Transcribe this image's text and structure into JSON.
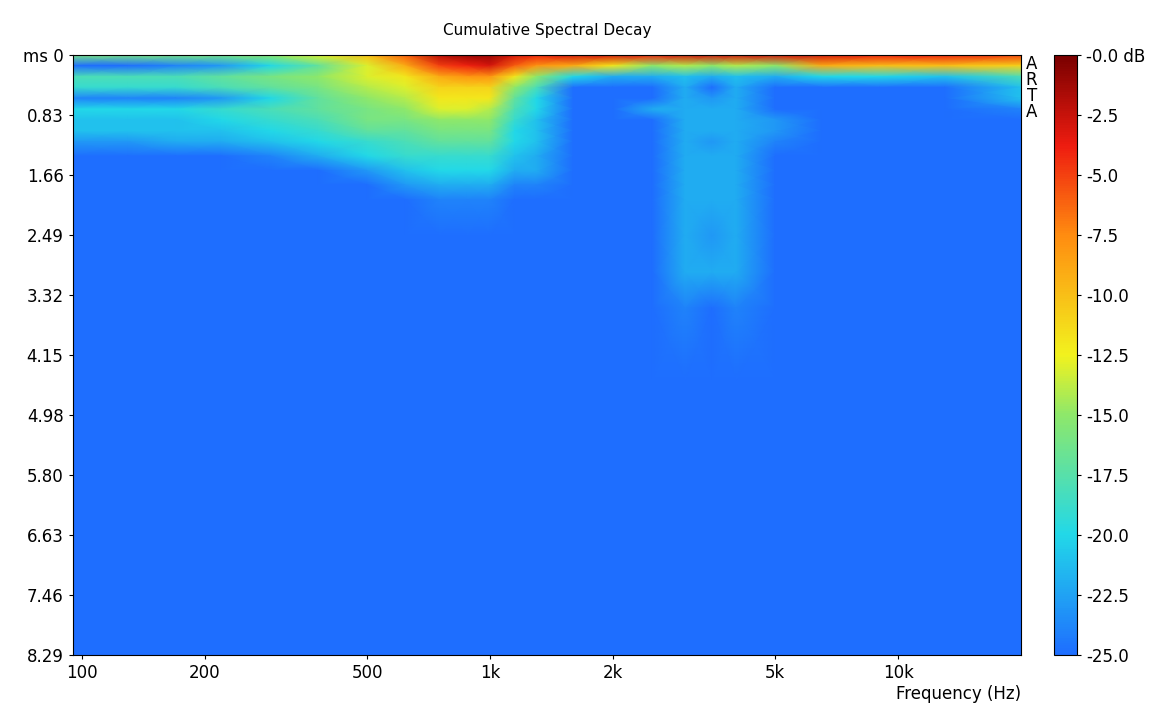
{
  "chart_data": {
    "type": "heatmap",
    "title": "Cumulative Spectral Decay",
    "x_label": "Frequency (Hz)",
    "annotation": "ARTA",
    "log": "x",
    "x": [
      95,
      130,
      170,
      220,
      290,
      380,
      500,
      620,
      750,
      880,
      1000,
      1150,
      1300,
      1600,
      2000,
      2500,
      3000,
      3500,
      4000,
      5000,
      6500,
      9000,
      13000,
      20000
    ],
    "y": [
      0,
      0.15,
      0.3,
      0.45,
      0.6,
      0.75,
      0.9,
      1.05,
      1.2,
      1.4,
      1.6,
      1.8,
      2.0,
      2.5,
      3.0,
      3.5,
      4.5,
      8.29
    ],
    "cells": [
      [
        -16,
        -16,
        -16,
        -16,
        -15,
        -13,
        -10,
        -6,
        -2,
        -1,
        -1,
        -3,
        -4,
        -3,
        -3,
        -4,
        -3,
        -3,
        -3,
        -3,
        -3,
        -4,
        -4,
        -5
      ],
      [
        -25,
        -25,
        -24,
        -23,
        -20,
        -17,
        -13,
        -9,
        -5,
        -4,
        -3,
        -6,
        -8,
        -9,
        -12,
        -15,
        -14,
        -15,
        -14,
        -15,
        -9,
        -10,
        -10,
        -11
      ],
      [
        -18,
        -18,
        -18,
        -17,
        -16,
        -15,
        -13,
        -12,
        -9,
        -8,
        -8,
        -12,
        -15,
        -20,
        -22,
        -22,
        -21,
        -22,
        -21,
        -22,
        -20,
        -20,
        -21,
        -18
      ],
      [
        -19,
        -19,
        -19,
        -18,
        -17,
        -16,
        -14,
        -13,
        -11,
        -11,
        -11,
        -15,
        -18,
        -25,
        -25,
        -25,
        -22,
        -25,
        -22,
        -25,
        -25,
        -25,
        -25,
        -21
      ],
      [
        -24,
        -24,
        -24,
        -23,
        -20,
        -17,
        -15,
        -14,
        -12,
        -12,
        -12,
        -17,
        -20,
        -25,
        -25,
        -25,
        -22,
        -23,
        -22,
        -25,
        -25,
        -25,
        -25,
        -21
      ],
      [
        -20,
        -20,
        -20,
        -19,
        -18,
        -17,
        -16,
        -15,
        -13,
        -13,
        -14,
        -18,
        -20,
        -25,
        -25,
        -22,
        -22,
        -22,
        -22,
        -25,
        -25,
        -25,
        -25,
        -24
      ],
      [
        -21,
        -21,
        -21,
        -20,
        -19,
        -18,
        -16,
        -16,
        -15,
        -15,
        -15,
        -19,
        -21,
        -25,
        -25,
        -25,
        -22,
        -22,
        -22,
        -23,
        -25,
        -25,
        -25,
        -25
      ],
      [
        -21,
        -21,
        -21,
        -21,
        -20,
        -19,
        -17,
        -17,
        -16,
        -16,
        -16,
        -20,
        -21,
        -25,
        -25,
        -25,
        -22,
        -22,
        -22,
        -23,
        -25,
        -25,
        -25,
        -25
      ],
      [
        -23,
        -23,
        -22,
        -22,
        -21,
        -20,
        -19,
        -18,
        -17,
        -17,
        -17,
        -20,
        -21,
        -25,
        -25,
        -25,
        -22,
        -23,
        -22,
        -24,
        -25,
        -25,
        -25,
        -25
      ],
      [
        -25,
        -25,
        -25,
        -25,
        -24,
        -22,
        -20,
        -19,
        -19,
        -19,
        -19,
        -21,
        -22,
        -25,
        -25,
        -25,
        -22,
        -22,
        -22,
        -25,
        -25,
        -25,
        -25,
        -25
      ],
      [
        -25,
        -25,
        -25,
        -25,
        -25,
        -25,
        -23,
        -21,
        -20,
        -20,
        -20,
        -22,
        -22,
        -25,
        -25,
        -25,
        -22,
        -22,
        -22,
        -25,
        -25,
        -25,
        -25,
        -25
      ],
      [
        -25,
        -25,
        -25,
        -25,
        -25,
        -25,
        -25,
        -23,
        -22,
        -22,
        -22,
        -24,
        -24,
        -25,
        -25,
        -25,
        -22,
        -22,
        -22,
        -25,
        -25,
        -25,
        -25,
        -25
      ],
      [
        -25,
        -25,
        -25,
        -25,
        -25,
        -25,
        -25,
        -25,
        -24,
        -24,
        -24,
        -25,
        -25,
        -25,
        -25,
        -25,
        -22,
        -22,
        -22,
        -25,
        -25,
        -25,
        -25,
        -25
      ],
      [
        -25,
        -25,
        -25,
        -25,
        -25,
        -25,
        -25,
        -25,
        -25,
        -25,
        -25,
        -25,
        -25,
        -25,
        -25,
        -25,
        -22,
        -23,
        -22,
        -25,
        -25,
        -25,
        -25,
        -25
      ],
      [
        -25,
        -25,
        -25,
        -25,
        -25,
        -25,
        -25,
        -25,
        -25,
        -25,
        -25,
        -25,
        -25,
        -25,
        -25,
        -25,
        -22,
        -22,
        -22,
        -25,
        -25,
        -25,
        -25,
        -25
      ],
      [
        -25,
        -25,
        -25,
        -25,
        -25,
        -25,
        -25,
        -25,
        -25,
        -25,
        -25,
        -25,
        -25,
        -25,
        -25,
        -25,
        -24,
        -25,
        -24,
        -25,
        -25,
        -25,
        -25,
        -25
      ],
      [
        -25,
        -25,
        -25,
        -25,
        -25,
        -25,
        -25,
        -25,
        -25,
        -25,
        -25,
        -25,
        -25,
        -25,
        -25,
        -25,
        -25,
        -25,
        -25,
        -25,
        -25,
        -25,
        -25,
        -25
      ],
      [
        -25,
        -25,
        -25,
        -25,
        -25,
        -25,
        -25,
        -25,
        -25,
        -25,
        -25,
        -25,
        -25,
        -25,
        -25,
        -25,
        -25,
        -25,
        -25,
        -25,
        -25,
        -25,
        -25,
        -25
      ]
    ],
    "xlim": [
      95,
      20000
    ],
    "xticks": [
      100,
      200,
      500,
      {
        "value": 1000,
        "label": "1k"
      },
      {
        "value": 2000,
        "label": "2k"
      },
      {
        "value": 5000,
        "label": "5k"
      },
      {
        "value": 10000,
        "label": "10k"
      }
    ],
    "ylim": [
      8.29,
      0
    ],
    "yticks": [
      {
        "value": 0,
        "label": "ms 0"
      },
      0.83,
      1.66,
      2.49,
      3.32,
      4.15,
      4.98,
      {
        "value": 5.8,
        "label": "5.80"
      },
      6.63,
      7.46,
      8.29
    ],
    "color_range": [
      -25,
      0
    ],
    "colorbar_ticks": [
      {
        "value": 0,
        "label": "-0.0 dB"
      },
      -2.5,
      {
        "value": -5,
        "label": "-5.0"
      },
      -7.5,
      {
        "value": -10,
        "label": "-10.0"
      },
      -12.5,
      {
        "value": -15,
        "label": "-15.0"
      },
      -17.5,
      {
        "value": -20,
        "label": "-20.0"
      },
      -22.5,
      {
        "value": -25,
        "label": "-25.0"
      }
    ]
  }
}
